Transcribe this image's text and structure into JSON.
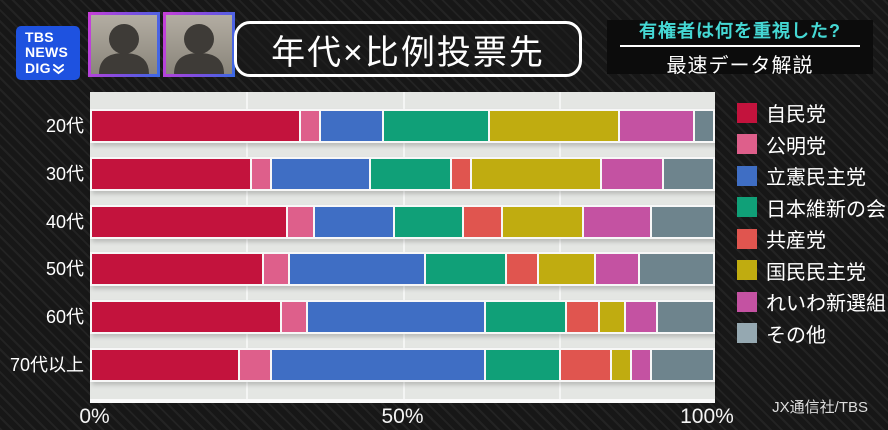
{
  "header": {
    "logo": {
      "line1": "TBS",
      "line2": "NEWS",
      "line3": "DIG",
      "color": "#1e52e0"
    },
    "title": "年代×比例投票先",
    "topic_box": {
      "line1": "有権者は何を重視した?",
      "line2": "最速データ解説",
      "line1_color": "#45d8d4"
    }
  },
  "chart_data": {
    "type": "bar",
    "stacked": true,
    "orientation": "horizontal",
    "categories": [
      "20代",
      "30代",
      "40代",
      "50代",
      "60代",
      "70代以上"
    ],
    "series": [
      {
        "name": "自民党",
        "color": "#c3133d",
        "values": [
          34,
          26,
          32,
          28,
          31,
          24
        ]
      },
      {
        "name": "公明党",
        "color": "#de5f8b",
        "values": [
          3,
          3,
          4,
          4,
          4,
          5
        ]
      },
      {
        "name": "立憲民主党",
        "color": "#3f6ec4",
        "values": [
          10,
          16,
          13,
          22,
          29,
          35
        ]
      },
      {
        "name": "日本維新の会",
        "color": "#10a078",
        "values": [
          17,
          13,
          11,
          13,
          13,
          12
        ]
      },
      {
        "name": "共産党",
        "color": "#e0554f",
        "values": [
          0,
          3,
          6,
          5,
          5,
          8
        ]
      },
      {
        "name": "国民民主党",
        "color": "#c0ac10",
        "values": [
          21,
          21,
          13,
          9,
          4,
          3
        ]
      },
      {
        "name": "れいわ新選組",
        "color": "#c452a2",
        "values": [
          12,
          10,
          11,
          7,
          5,
          3
        ]
      },
      {
        "name": "その他",
        "color": "#6e848d",
        "legend_color": "#95a8b1",
        "values": [
          3,
          8,
          10,
          12,
          9,
          10
        ]
      }
    ],
    "x_ticks": [
      "0%",
      "50%",
      "100%"
    ],
    "xlim": [
      0,
      100
    ],
    "gridlines_percent": [
      25,
      50,
      75
    ],
    "legend_position": "right",
    "plot_background": "#e4e6e3"
  },
  "credit": "JX通信社/TBS"
}
